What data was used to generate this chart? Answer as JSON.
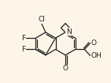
{
  "bg_color": "#fdf6e8",
  "bond_color": "#222222",
  "lw": 0.9,
  "figsize": [
    1.41,
    1.05
  ],
  "dpi": 100,
  "xlim": [
    -0.05,
    1.05
  ],
  "ylim": [
    -0.05,
    1.05
  ],
  "font_size": 6.5
}
